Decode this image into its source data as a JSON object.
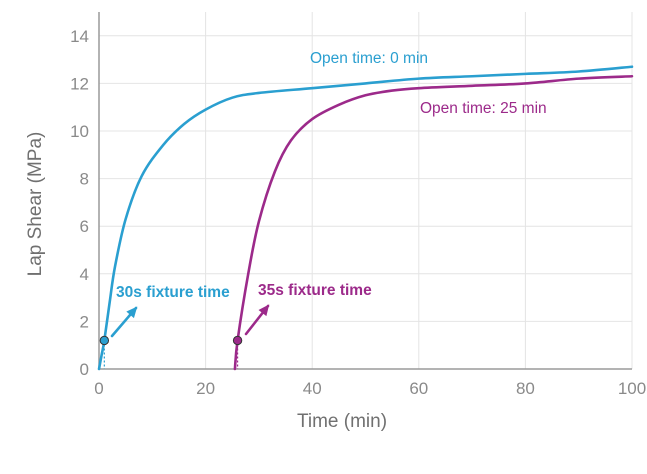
{
  "chart_data": {
    "type": "line",
    "title": "",
    "xlabel": "Time (min)",
    "ylabel": "Lap Shear (MPa)",
    "xlim": [
      0,
      100
    ],
    "ylim": [
      0,
      15
    ],
    "x_ticks": [
      0,
      20,
      40,
      60,
      80,
      100
    ],
    "x_tick_labels": [
      "0",
      "20",
      "40",
      "60",
      "80",
      "100"
    ],
    "y_ticks": [
      0,
      2,
      4,
      6,
      8,
      10,
      12,
      14
    ],
    "y_tick_labels": [
      "0",
      "2",
      "4",
      "6",
      "8",
      "10",
      "12",
      "14"
    ],
    "grid": true,
    "legend": "none",
    "series": [
      {
        "name": "Open time: 0 min",
        "color": "#2a9fd0",
        "x": [
          0,
          0.5,
          1,
          2,
          3,
          5,
          8,
          12,
          16,
          20,
          25,
          30,
          40,
          50,
          60,
          70,
          80,
          90,
          100
        ],
        "y": [
          0,
          0.6,
          1.2,
          2.8,
          4.3,
          6.3,
          8.1,
          9.4,
          10.3,
          10.9,
          11.4,
          11.6,
          11.8,
          12.0,
          12.2,
          12.3,
          12.4,
          12.5,
          12.7
        ]
      },
      {
        "name": "Open time: 25 min",
        "color": "#9c2a8a",
        "x": [
          25.5,
          26,
          28,
          30,
          33,
          36,
          40,
          45,
          50,
          55,
          60,
          70,
          80,
          90,
          100
        ],
        "y": [
          0,
          1.2,
          4.0,
          6.2,
          8.3,
          9.6,
          10.5,
          11.1,
          11.5,
          11.7,
          11.8,
          11.9,
          12.0,
          12.2,
          12.3
        ]
      }
    ],
    "annotations": [
      {
        "text": "30s fixture time",
        "x": 1,
        "y": 1.2,
        "color": "#2a9fd0"
      },
      {
        "text": "35s fixture time",
        "x": 26,
        "y": 1.2,
        "color": "#9c2a8a"
      }
    ]
  }
}
